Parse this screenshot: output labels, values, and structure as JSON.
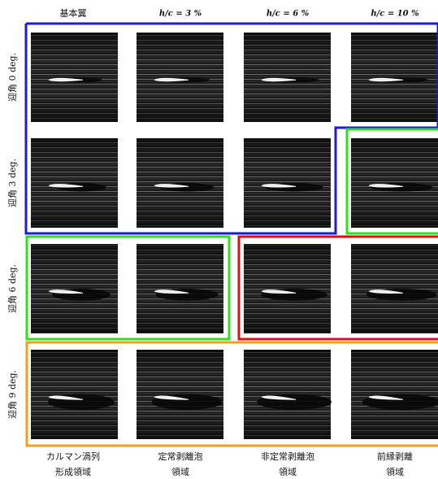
{
  "column_headers": [
    "基本翼",
    "h/c = 3 %",
    "h/c = 6 %",
    "h/c = 10 %"
  ],
  "row_labels": [
    "迎角 0 deg.",
    "迎角 3 deg.",
    "迎角 6 deg.",
    "迎角 9 deg."
  ],
  "region_labels": [
    [
      "カルマン渦列",
      "形成領域"
    ],
    [
      "定常剥離泡",
      "領域"
    ],
    [
      "非定常剥離泡",
      "領域"
    ],
    [
      "前縁剥離",
      "領域"
    ]
  ]
}
